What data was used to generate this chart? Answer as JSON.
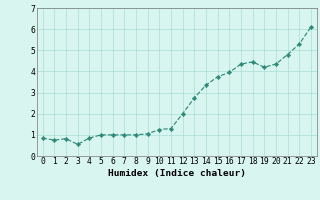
{
  "x": [
    0,
    1,
    2,
    3,
    4,
    5,
    6,
    7,
    8,
    9,
    10,
    11,
    12,
    13,
    14,
    15,
    16,
    17,
    18,
    19,
    20,
    21,
    22,
    23
  ],
  "y": [
    0.85,
    0.75,
    0.82,
    0.55,
    0.85,
    1.0,
    1.0,
    1.0,
    1.0,
    1.05,
    1.25,
    1.3,
    2.0,
    2.75,
    3.35,
    3.75,
    3.95,
    4.35,
    4.45,
    4.2,
    4.35,
    4.8,
    5.3,
    6.1
  ],
  "line_color": "#2e8b7a",
  "marker": "D",
  "marker_size": 2.2,
  "bg_color": "#d8f5ef",
  "grid_color": "#aaddd4",
  "xlabel": "Humidex (Indice chaleur)",
  "xlim": [
    -0.5,
    23.5
  ],
  "ylim": [
    0,
    7
  ],
  "yticks": [
    0,
    1,
    2,
    3,
    4,
    5,
    6,
    7
  ],
  "tick_fontsize": 5.8,
  "xlabel_fontsize": 6.8
}
